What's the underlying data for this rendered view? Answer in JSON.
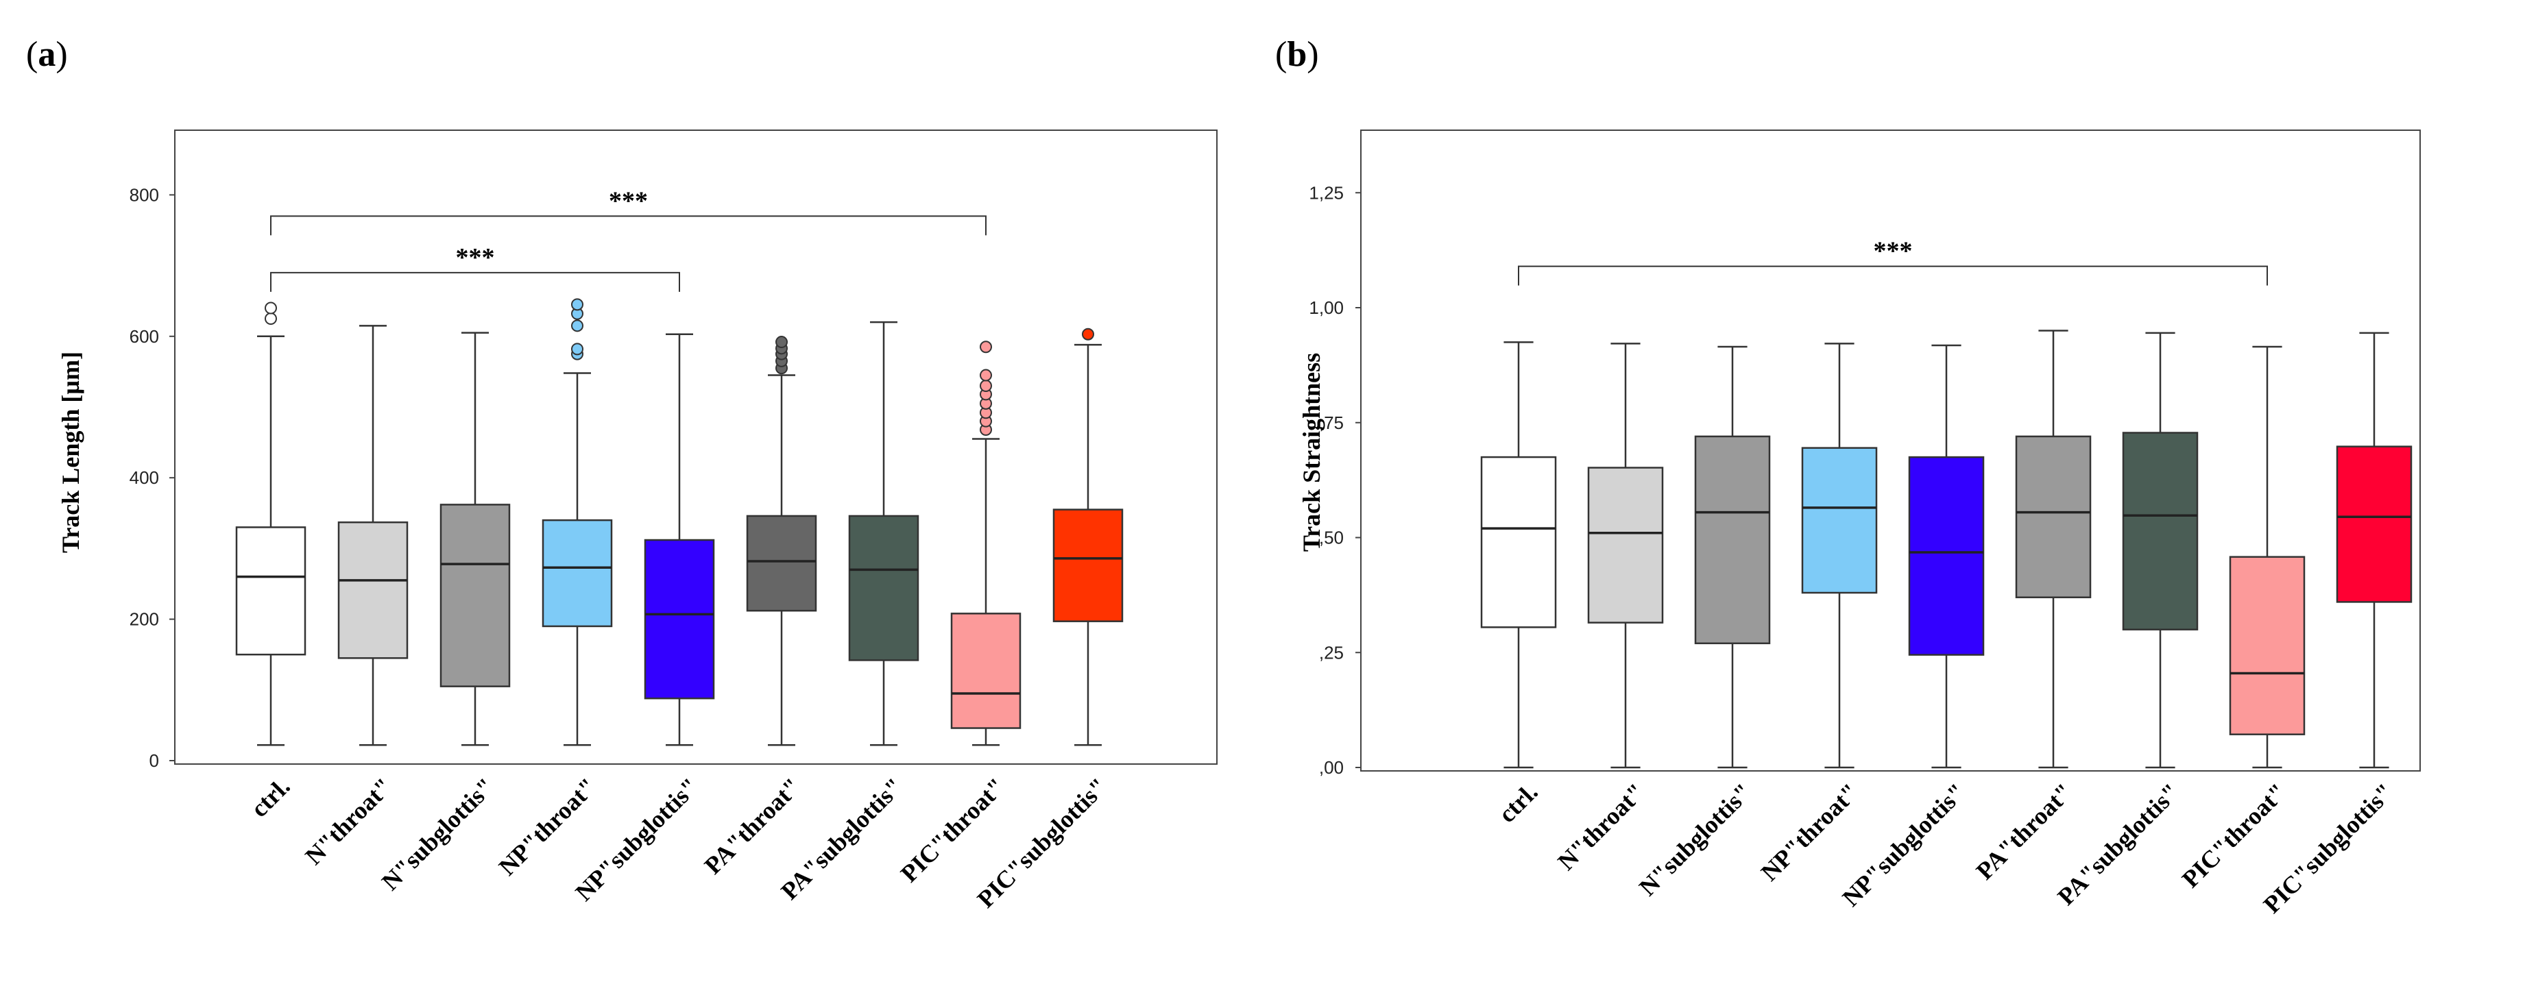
{
  "chart_data": [
    {
      "type": "box",
      "panel_label": "a",
      "ylabel": "Track Length [µm]",
      "xlabel": "",
      "ylim": [
        0,
        900
      ],
      "yticks": [
        0,
        200,
        400,
        600,
        800
      ],
      "ytick_labels": [
        "0",
        "200",
        "400",
        "600",
        "800"
      ],
      "grid": false,
      "categories": [
        "ctrl.",
        "N\"throat\"",
        "N\"subglottis\"",
        "NP\"throat\"",
        "NP\"subglottis\"",
        "PA\"throat\"",
        "PA\"subglottis\"",
        "PIC\"throat\"",
        "PIC\"subglottis\""
      ],
      "colors": [
        "#ffffff",
        "#d3d3d3",
        "#9a9a9a",
        "#7ecbf7",
        "#3300ff",
        "#666666",
        "#4a5d55",
        "#fc9a9a",
        "#ff3300"
      ],
      "boxes": [
        {
          "whisker_low": 22,
          "q1": 150,
          "median": 260,
          "q3": 330,
          "whisker_high": 600,
          "outliers": [
            625,
            640
          ]
        },
        {
          "whisker_low": 22,
          "q1": 145,
          "median": 255,
          "q3": 337,
          "whisker_high": 615,
          "outliers": []
        },
        {
          "whisker_low": 22,
          "q1": 105,
          "median": 278,
          "q3": 362,
          "whisker_high": 605,
          "outliers": []
        },
        {
          "whisker_low": 22,
          "q1": 190,
          "median": 273,
          "q3": 340,
          "whisker_high": 548,
          "outliers": [
            575,
            582,
            615,
            632,
            645
          ]
        },
        {
          "whisker_low": 22,
          "q1": 88,
          "median": 207,
          "q3": 312,
          "whisker_high": 603,
          "outliers": []
        },
        {
          "whisker_low": 22,
          "q1": 212,
          "median": 282,
          "q3": 346,
          "whisker_high": 545,
          "outliers": [
            555,
            565,
            575,
            583,
            592
          ]
        },
        {
          "whisker_low": 22,
          "q1": 142,
          "median": 270,
          "q3": 346,
          "whisker_high": 620,
          "outliers": []
        },
        {
          "whisker_low": 22,
          "q1": 46,
          "median": 95,
          "q3": 208,
          "whisker_high": 455,
          "outliers": [
            468,
            480,
            492,
            505,
            518,
            530,
            545,
            585
          ]
        },
        {
          "whisker_low": 22,
          "q1": 197,
          "median": 286,
          "q3": 355,
          "whisker_high": 588,
          "outliers": [
            603
          ]
        }
      ],
      "significance": [
        {
          "from": 0,
          "to": 7,
          "label": "***",
          "y": 770
        },
        {
          "from": 0,
          "to": 4,
          "label": "***",
          "y": 690
        }
      ]
    },
    {
      "type": "box",
      "panel_label": "b",
      "ylabel": "Track Straightness",
      "xlabel": "",
      "ylim": [
        0,
        1.38
      ],
      "yticks": [
        0,
        0.25,
        0.5,
        0.75,
        1.0,
        1.25
      ],
      "ytick_labels": [
        ",00",
        ",25",
        ",50",
        ",75",
        "1,00",
        "1,25"
      ],
      "grid": false,
      "categories": [
        "ctrl.",
        "N\"throat\"",
        "N\"subglottis\"",
        "NP\"throat\"",
        "NP\"subglottis\"",
        "PA\"throat\"",
        "PA\"subglottis\"",
        "PIC\"throat\"",
        "PIC\"subglottis\""
      ],
      "colors": [
        "#ffffff",
        "#d3d3d3",
        "#9a9a9a",
        "#7ecbf7",
        "#3300ff",
        "#9a9a9a",
        "#4a5d55",
        "#fc9a9a",
        "#ff0033"
      ],
      "boxes": [
        {
          "whisker_low": 0.0,
          "q1": 0.305,
          "median": 0.52,
          "q3": 0.675,
          "whisker_high": 0.925,
          "outliers": []
        },
        {
          "whisker_low": 0.0,
          "q1": 0.315,
          "median": 0.51,
          "q3": 0.652,
          "whisker_high": 0.922,
          "outliers": []
        },
        {
          "whisker_low": 0.0,
          "q1": 0.27,
          "median": 0.555,
          "q3": 0.72,
          "whisker_high": 0.915,
          "outliers": []
        },
        {
          "whisker_low": 0.0,
          "q1": 0.38,
          "median": 0.565,
          "q3": 0.695,
          "whisker_high": 0.922,
          "outliers": []
        },
        {
          "whisker_low": 0.0,
          "q1": 0.245,
          "median": 0.468,
          "q3": 0.675,
          "whisker_high": 0.918,
          "outliers": []
        },
        {
          "whisker_low": 0.0,
          "q1": 0.37,
          "median": 0.555,
          "q3": 0.72,
          "whisker_high": 0.95,
          "outliers": []
        },
        {
          "whisker_low": 0.0,
          "q1": 0.3,
          "median": 0.548,
          "q3": 0.728,
          "whisker_high": 0.945,
          "outliers": []
        },
        {
          "whisker_low": 0.0,
          "q1": 0.072,
          "median": 0.205,
          "q3": 0.458,
          "whisker_high": 0.915,
          "outliers": []
        },
        {
          "whisker_low": 0.0,
          "q1": 0.36,
          "median": 0.545,
          "q3": 0.698,
          "whisker_high": 0.945,
          "outliers": []
        }
      ],
      "significance": [
        {
          "from": 0,
          "to": 7,
          "label": "***",
          "y": 1.09
        }
      ]
    }
  ]
}
